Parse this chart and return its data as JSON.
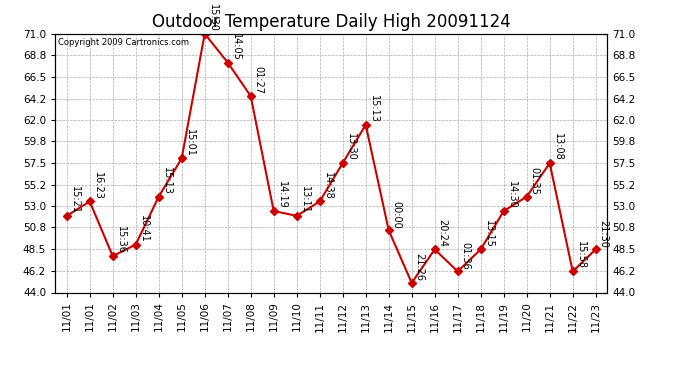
{
  "title": "Outdoor Temperature Daily High 20091124",
  "copyright": "Copyright 2009 Cartronics.com",
  "x_labels": [
    "11/01",
    "11/01",
    "11/02",
    "11/03",
    "11/04",
    "11/05",
    "11/06",
    "11/07",
    "11/08",
    "11/09",
    "11/10",
    "11/11",
    "11/12",
    "11/13",
    "11/14",
    "11/15",
    "11/16",
    "11/17",
    "11/18",
    "11/19",
    "11/20",
    "11/21",
    "11/22",
    "11/23"
  ],
  "y_values": [
    52.0,
    53.5,
    47.8,
    49.0,
    54.0,
    58.0,
    71.0,
    68.0,
    64.5,
    52.5,
    52.0,
    53.5,
    57.5,
    61.5,
    50.5,
    45.0,
    48.5,
    46.2,
    48.5,
    52.5,
    54.0,
    57.5,
    46.2,
    48.5
  ],
  "time_labels": [
    "15:21",
    "16:23",
    "15:36",
    "10:41",
    "15:13",
    "15:01",
    "15:30",
    "14:05",
    "01:27",
    "14:19",
    "13:11",
    "14:38",
    "13:30",
    "15:13",
    "00:00",
    "21:26",
    "20:24",
    "01:36",
    "13:15",
    "14:30",
    "01:35",
    "13:08",
    "15:58",
    "21:30"
  ],
  "ylim": [
    44.0,
    71.0
  ],
  "ytick_labels": [
    "44.0",
    "46.2",
    "48.5",
    "50.8",
    "53.0",
    "55.2",
    "57.5",
    "59.8",
    "62.0",
    "64.2",
    "66.5",
    "68.8",
    "71.0"
  ],
  "ytick_values": [
    44.0,
    46.2,
    48.5,
    50.8,
    53.0,
    55.2,
    57.5,
    59.8,
    62.0,
    64.2,
    66.5,
    68.8,
    71.0
  ],
  "line_color": "#cc0000",
  "marker_color": "#cc0000",
  "bg_color": "#ffffff",
  "grid_color": "#aaaaaa",
  "title_fontsize": 12,
  "tick_fontsize": 7.5,
  "annotation_fontsize": 7
}
